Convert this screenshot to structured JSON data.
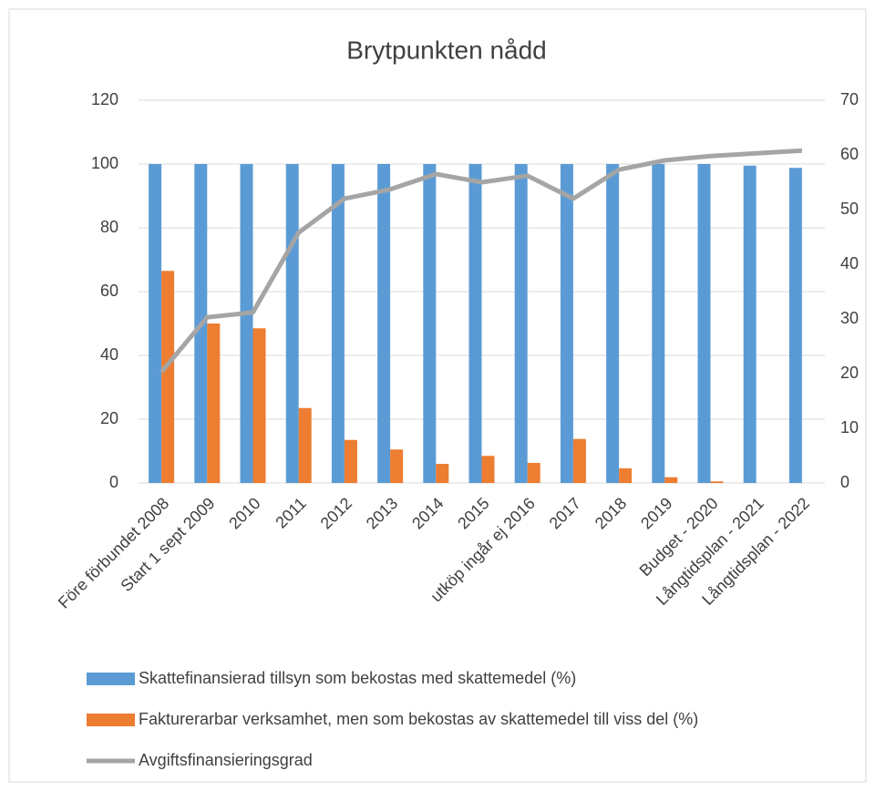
{
  "chart_data": {
    "type": "bar_line",
    "title": "Brytpunkten nådd",
    "categories": [
      "Före förbundet 2008",
      "Start 1 sept 2009",
      "2010",
      "2011",
      "2012",
      "2013",
      "2014",
      "2015",
      "utköp ingår ej 2016",
      "2017",
      "2018",
      "2019",
      "Budget - 2020",
      "Långtidsplan - 2021",
      "Långtidsplan - 2022"
    ],
    "series": [
      {
        "name": "Skattefinansierad tillsyn som bekostas med skattemedel (%)",
        "color": "#5b9bd5",
        "type": "bar",
        "values": [
          100,
          100,
          100,
          100,
          100,
          100,
          100,
          100,
          100,
          100,
          100,
          100,
          100,
          99.5,
          98.8
        ]
      },
      {
        "name": "Fakturerarbar verksamhet, men som bekostas av skattemedel till viss del (%)",
        "color": "#ed7d31",
        "type": "bar",
        "values": [
          66.5,
          50,
          48.5,
          23.5,
          13.5,
          10.5,
          6,
          8.5,
          6.3,
          13.8,
          4.6,
          1.8,
          0.5,
          0,
          0
        ]
      },
      {
        "name": "Avgiftsfinansieringsgrad",
        "color": "#a5a5a5",
        "type": "line",
        "axis": "y2",
        "values": [
          20.3,
          30.3,
          31.2,
          45.8,
          52,
          53.7,
          56.5,
          55,
          56.2,
          52,
          57.3,
          59,
          59.8,
          60.3,
          60.8
        ]
      }
    ],
    "ylim": [
      0,
      120
    ],
    "yticks": [
      0,
      20,
      40,
      60,
      80,
      100,
      120
    ],
    "y2lim": [
      0,
      70
    ],
    "y2ticks": [
      0,
      10,
      20,
      30,
      40,
      50,
      60,
      70
    ],
    "grid": true,
    "legend": "bottom"
  }
}
